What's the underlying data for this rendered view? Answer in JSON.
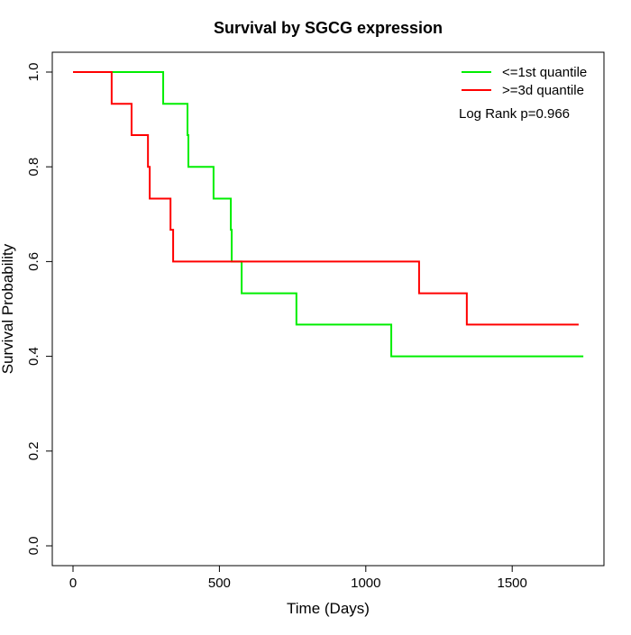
{
  "chart_data": {
    "type": "line",
    "title": "Survival by SGCG expression",
    "xlabel": "Time (Days)",
    "ylabel": "Survival Probability",
    "xlim": [
      0,
      1750
    ],
    "ylim": [
      0,
      1
    ],
    "x_ticks": [
      0,
      500,
      1000,
      1500
    ],
    "y_ticks": [
      "0.0",
      "0.2",
      "0.4",
      "0.6",
      "0.8",
      "1.0"
    ],
    "grid": false,
    "legend_position": "top-right",
    "annotation": "Log Rank p=0.966",
    "series": [
      {
        "name": "<=1st quantile",
        "color": "#00ee00",
        "step": true,
        "x": [
          0,
          308,
          391,
          394,
          480,
          539,
          542,
          576,
          763,
          1087,
          1743
        ],
        "y": [
          1.0,
          0.933,
          0.867,
          0.8,
          0.733,
          0.667,
          0.6,
          0.533,
          0.467,
          0.4,
          0.4
        ]
      },
      {
        "name": ">=3d quantile",
        "color": "#ff0000",
        "step": true,
        "x": [
          0,
          132,
          200,
          256,
          262,
          333,
          342,
          1182,
          1345,
          1727
        ],
        "y": [
          1.0,
          0.933,
          0.867,
          0.8,
          0.733,
          0.667,
          0.6,
          0.533,
          0.467,
          0.467
        ]
      }
    ]
  }
}
